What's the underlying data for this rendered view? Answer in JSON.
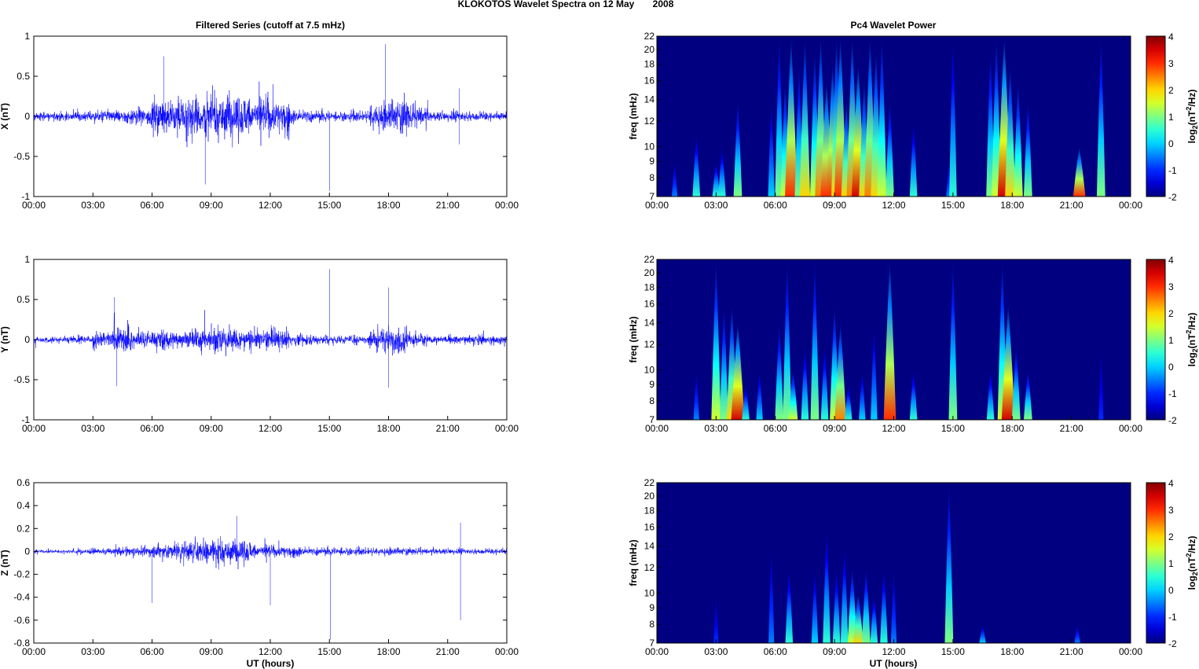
{
  "chart_data": {
    "title": "KLOKOTOS Wavelet Spectra on 12 May       2008",
    "left_title": "Filtered Series (cutoff at 7.5 mHz)",
    "right_title": "Pc4 Wavelet Power",
    "xlabel": "UT (hours)",
    "xticks": [
      "00:00",
      "03:00",
      "06:00",
      "09:00",
      "12:00",
      "15:00",
      "18:00",
      "21:00",
      "00:00"
    ],
    "xlim": [
      0,
      24
    ],
    "series": [
      {
        "name": "X",
        "type": "line",
        "ylabel": "X (nT)",
        "ylim": [
          -1,
          1
        ],
        "yticks": [
          "-1",
          "-0.5",
          "0",
          "0.5",
          "1"
        ],
        "yvals": [
          -1,
          -0.5,
          0,
          0.5,
          1
        ],
        "hourly_amplitude": [
          0.06,
          0.06,
          0.08,
          0.08,
          0.1,
          0.12,
          0.25,
          0.3,
          0.32,
          0.35,
          0.3,
          0.3,
          0.25,
          0.1,
          0.08,
          0.07,
          0.08,
          0.2,
          0.25,
          0.15,
          0.07,
          0.08,
          0.07,
          0.06
        ],
        "spikes": [
          [
            15.0,
            -0.93
          ],
          [
            17.85,
            0.9
          ],
          [
            6.6,
            0.75
          ],
          [
            8.7,
            -0.85
          ],
          [
            21.6,
            -0.35
          ],
          [
            21.6,
            0.35
          ]
        ]
      },
      {
        "name": "Y",
        "type": "line",
        "ylabel": "Y (nT)",
        "ylim": [
          -1,
          1
        ],
        "yticks": [
          "-1",
          "-0.5",
          "0",
          "0.5",
          "1"
        ],
        "yvals": [
          -1,
          -0.5,
          0,
          0.5,
          1
        ],
        "hourly_amplitude": [
          0.05,
          0.05,
          0.06,
          0.12,
          0.2,
          0.12,
          0.15,
          0.12,
          0.15,
          0.2,
          0.15,
          0.15,
          0.15,
          0.08,
          0.07,
          0.06,
          0.07,
          0.15,
          0.2,
          0.1,
          0.06,
          0.07,
          0.08,
          0.07
        ],
        "spikes": [
          [
            15.0,
            0.88
          ],
          [
            18.0,
            0.65
          ],
          [
            18.0,
            -0.6
          ],
          [
            4.2,
            -0.58
          ],
          [
            4.1,
            0.53
          ]
        ]
      },
      {
        "name": "Z",
        "type": "line",
        "ylabel": "Z (nT)",
        "ylim": [
          -0.8,
          0.6
        ],
        "yticks": [
          "-0.8",
          "-0.6",
          "-0.4",
          "-0.2",
          "0",
          "0.2",
          "0.4",
          "0.6"
        ],
        "yvals": [
          -0.8,
          -0.6,
          -0.4,
          -0.2,
          0,
          0.2,
          0.4,
          0.6
        ],
        "hourly_amplitude": [
          0.02,
          0.02,
          0.03,
          0.03,
          0.04,
          0.06,
          0.08,
          0.1,
          0.12,
          0.14,
          0.12,
          0.08,
          0.06,
          0.05,
          0.04,
          0.04,
          0.04,
          0.04,
          0.04,
          0.03,
          0.03,
          0.03,
          0.03,
          0.03
        ],
        "spikes": [
          [
            15.05,
            -0.77
          ],
          [
            21.65,
            -0.6
          ],
          [
            10.3,
            0.31
          ],
          [
            12.0,
            -0.47
          ],
          [
            6.0,
            -0.45
          ],
          [
            21.65,
            0.25
          ]
        ]
      }
    ],
    "spectrograms": [
      {
        "type": "heatmap",
        "ylabel": "freq (mHz)",
        "ylim": [
          7,
          22
        ],
        "yticks": [
          "7",
          "8",
          "9",
          "10",
          "12",
          "14",
          "16",
          "18",
          "20",
          "22"
        ],
        "yvals": [
          7,
          8,
          9,
          10,
          12,
          14,
          16,
          18,
          20,
          22
        ],
        "colorbar": {
          "label": "log2(nT2/Hz)",
          "range": [
            -2,
            4
          ],
          "ticks": [
            "-2",
            "-1",
            "0",
            "1",
            "2",
            "3",
            "4"
          ]
        },
        "bursts_hour_fmax_power": [
          [
            0.9,
            9,
            -0.5
          ],
          [
            2.0,
            11,
            0.5
          ],
          [
            3.0,
            9,
            0.5
          ],
          [
            3.3,
            10,
            0.5
          ],
          [
            4.1,
            14,
            1
          ],
          [
            5.8,
            14,
            0
          ],
          [
            6.2,
            22,
            1
          ],
          [
            6.5,
            16,
            1.5
          ],
          [
            6.8,
            22,
            3
          ],
          [
            7.2,
            18,
            1
          ],
          [
            7.5,
            22,
            2
          ],
          [
            8.0,
            20,
            1.5
          ],
          [
            8.3,
            22,
            2.5
          ],
          [
            8.6,
            16,
            3
          ],
          [
            8.9,
            18,
            3
          ],
          [
            9.1,
            22,
            2
          ],
          [
            9.3,
            22,
            3
          ],
          [
            9.6,
            14,
            2
          ],
          [
            9.9,
            22,
            2.5
          ],
          [
            10.2,
            18,
            3.5
          ],
          [
            10.5,
            16,
            2
          ],
          [
            10.8,
            22,
            2.5
          ],
          [
            11.1,
            20,
            2
          ],
          [
            11.4,
            22,
            1.5
          ],
          [
            11.8,
            14,
            1
          ],
          [
            13.0,
            12,
            0.5
          ],
          [
            14.8,
            9,
            -0.5
          ],
          [
            15.0,
            22,
            0.5
          ],
          [
            16.9,
            20,
            1
          ],
          [
            17.2,
            22,
            1.5
          ],
          [
            17.6,
            22,
            3.5
          ],
          [
            17.9,
            18,
            2
          ],
          [
            18.3,
            16,
            1.5
          ],
          [
            18.8,
            14,
            1
          ],
          [
            21.4,
            10,
            3
          ],
          [
            22.5,
            22,
            1
          ]
        ]
      },
      {
        "type": "heatmap",
        "ylabel": "freq (mHz)",
        "ylim": [
          7,
          22
        ],
        "yticks": [
          "7",
          "8",
          "9",
          "10",
          "12",
          "14",
          "16",
          "18",
          "20",
          "22"
        ],
        "yvals": [
          7,
          8,
          9,
          10,
          12,
          14,
          16,
          18,
          20,
          22
        ],
        "colorbar": {
          "label": "log2(nT2/Hz)",
          "range": [
            -2,
            4
          ],
          "ticks": [
            "-2",
            "-1",
            "0",
            "1",
            "2",
            "3",
            "4"
          ]
        },
        "bursts_hour_fmax_power": [
          [
            2.0,
            10,
            -0.5
          ],
          [
            3.0,
            22,
            1.5
          ],
          [
            3.4,
            16,
            1
          ],
          [
            3.8,
            16,
            2
          ],
          [
            4.1,
            14,
            3.5
          ],
          [
            4.5,
            9,
            0.5
          ],
          [
            5.2,
            10,
            0
          ],
          [
            6.2,
            14,
            1
          ],
          [
            6.6,
            22,
            1
          ],
          [
            6.9,
            10,
            1.5
          ],
          [
            7.5,
            12,
            0.5
          ],
          [
            8.0,
            22,
            1
          ],
          [
            8.5,
            12,
            0.5
          ],
          [
            9.0,
            16,
            1.5
          ],
          [
            9.3,
            14,
            2.5
          ],
          [
            9.7,
            9,
            0.5
          ],
          [
            10.4,
            10,
            0
          ],
          [
            11.0,
            14,
            0
          ],
          [
            11.8,
            22,
            3
          ],
          [
            13.0,
            10,
            0.5
          ],
          [
            15.0,
            22,
            1
          ],
          [
            16.9,
            10,
            0.5
          ],
          [
            17.5,
            22,
            1.5
          ],
          [
            17.8,
            16,
            3.5
          ],
          [
            18.2,
            12,
            1
          ],
          [
            18.8,
            10,
            1
          ],
          [
            22.5,
            12,
            -1
          ]
        ]
      },
      {
        "type": "heatmap",
        "ylabel": "freq (mHz)",
        "ylim": [
          7,
          22
        ],
        "yticks": [
          "7",
          "8",
          "9",
          "10",
          "12",
          "14",
          "16",
          "18",
          "20",
          "22"
        ],
        "yvals": [
          7,
          8,
          9,
          10,
          12,
          14,
          16,
          18,
          20,
          22
        ],
        "colorbar": {
          "label": "log2(nT2/Hz)",
          "range": [
            -2,
            4
          ],
          "ticks": [
            "-2",
            "-1",
            "0",
            "1",
            "2",
            "3",
            "4"
          ]
        },
        "bursts_hour_fmax_power": [
          [
            3.0,
            10,
            -1
          ],
          [
            5.8,
            14,
            -0.5
          ],
          [
            6.7,
            12,
            0.5
          ],
          [
            8.0,
            12,
            0
          ],
          [
            8.6,
            16,
            0.5
          ],
          [
            9.1,
            12,
            0.5
          ],
          [
            9.5,
            14,
            0.5
          ],
          [
            9.9,
            12,
            1.5
          ],
          [
            10.2,
            10,
            2
          ],
          [
            10.6,
            12,
            1
          ],
          [
            11.0,
            10,
            0.5
          ],
          [
            11.5,
            12,
            0.5
          ],
          [
            12.0,
            12,
            -0.5
          ],
          [
            14.8,
            22,
            1
          ],
          [
            16.5,
            8,
            0
          ],
          [
            21.3,
            8,
            -0.5
          ]
        ]
      }
    ],
    "colors": {
      "line": "#0000ff",
      "background": "#00008f"
    }
  }
}
